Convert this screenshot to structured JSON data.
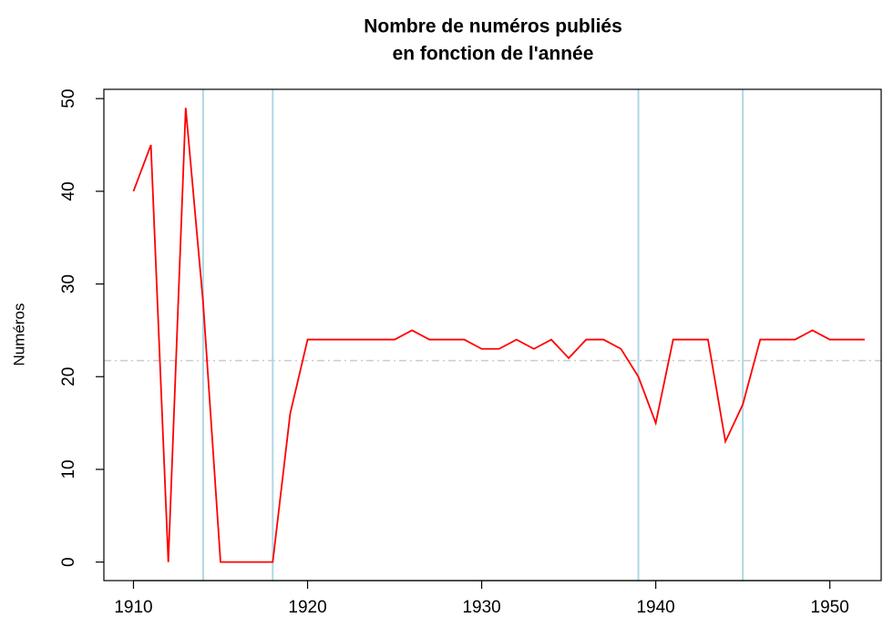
{
  "chart_data": {
    "type": "line",
    "title": [
      "Nombre de numéros publiés",
      "en fonction de l'année"
    ],
    "y_label": "Numéros",
    "x": [
      1910,
      1911,
      1912,
      1913,
      1914,
      1915,
      1916,
      1917,
      1918,
      1919,
      1920,
      1921,
      1922,
      1923,
      1924,
      1925,
      1926,
      1927,
      1928,
      1929,
      1930,
      1931,
      1932,
      1933,
      1934,
      1935,
      1936,
      1937,
      1938,
      1939,
      1940,
      1941,
      1942,
      1943,
      1944,
      1945,
      1946,
      1947,
      1948,
      1949,
      1950,
      1951,
      1952
    ],
    "series": [
      {
        "color": "#ff0000",
        "values": [
          40,
          45,
          0,
          49,
          28,
          0,
          0,
          0,
          0,
          16,
          24,
          24,
          24,
          24,
          24,
          24,
          25,
          24,
          24,
          24,
          23,
          23,
          24,
          23,
          24,
          22,
          24,
          24,
          23,
          20,
          15,
          24,
          24,
          24,
          13,
          17,
          24,
          24,
          24,
          25,
          24,
          24,
          24
        ]
      }
    ],
    "vlines": [
      1914,
      1918,
      1939,
      1945
    ],
    "vline_color": "#add8e6",
    "hline": 21.74,
    "hline_color": "#cccccc",
    "xlim": [
      1908.3,
      1953.0
    ],
    "xticks": [
      1910,
      1920,
      1930,
      1940,
      1950
    ],
    "ylim": [
      -2,
      51
    ],
    "yticks": [
      0,
      10,
      20,
      30,
      40,
      50
    ]
  }
}
